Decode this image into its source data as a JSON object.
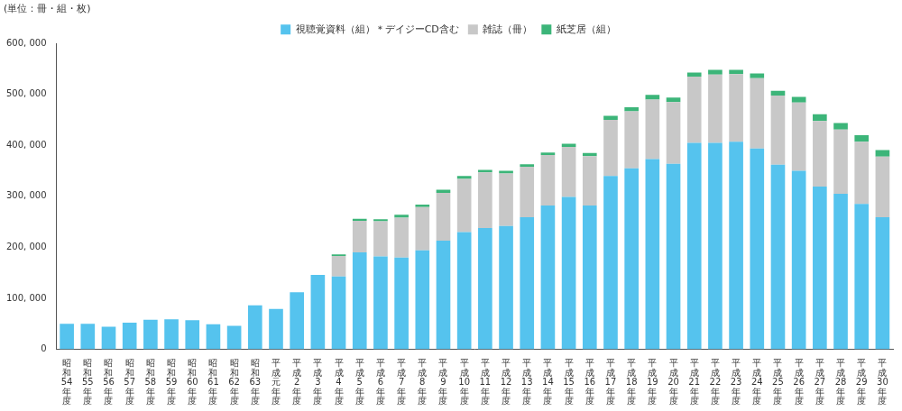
{
  "chart_data": {
    "type": "bar",
    "stacked": true,
    "grid": false,
    "legend": "top",
    "ylabel": "(単位：冊・組・枚)",
    "categories": [
      "昭和54年度",
      "昭和55年度",
      "昭和56年度",
      "昭和57年度",
      "昭和58年度",
      "昭和59年度",
      "昭和60年度",
      "昭和61年度",
      "昭和62年度",
      "昭和63年度",
      "平成元年度",
      "平成2年度",
      "平成3年度",
      "平成4年度",
      "平成5年度",
      "平成6年度",
      "平成7年度",
      "平成8年度",
      "平成9年度",
      "平成10年度",
      "平成11年度",
      "平成12年度",
      "平成13年度",
      "平成14年度",
      "平成15年度",
      "平成16年度",
      "平成17年度",
      "平成18年度",
      "平成19年度",
      "平成20年度",
      "平成21年度",
      "平成22年度",
      "平成23年度",
      "平成24年度",
      "平成25年度",
      "平成26年度",
      "平成27年度",
      "平成28年度",
      "平成29年度",
      "平成30年度"
    ],
    "series": [
      {
        "name": "視聴覚資料（組）＊デイジーCD含む",
        "color": "#55c3ee",
        "values": [
          50000,
          50000,
          44000,
          52000,
          58000,
          59000,
          57000,
          49000,
          46000,
          86000,
          79000,
          112000,
          146000,
          143000,
          190000,
          182000,
          180000,
          194000,
          213000,
          230000,
          238000,
          242000,
          259000,
          282000,
          299000,
          282000,
          340000,
          355000,
          373000,
          364000,
          405000,
          405000,
          407000,
          394000,
          362000,
          350000,
          319000,
          305000,
          285000,
          259000
        ]
      },
      {
        "name": "雑誌（冊）",
        "color": "#c8c8c8",
        "values": [
          null,
          null,
          null,
          null,
          null,
          null,
          null,
          null,
          null,
          null,
          null,
          null,
          null,
          40000,
          62000,
          69000,
          78000,
          85000,
          94000,
          104000,
          109000,
          103000,
          99000,
          99000,
          98000,
          97000,
          110000,
          112000,
          117000,
          121000,
          130000,
          134000,
          133000,
          138000,
          136000,
          134000,
          129000,
          126000,
          122000,
          119000
        ]
      },
      {
        "name": "紙芝居（組）",
        "color": "#3cb579",
        "values": [
          null,
          null,
          null,
          null,
          null,
          null,
          null,
          null,
          null,
          null,
          null,
          null,
          null,
          3000,
          4000,
          4000,
          6000,
          5000,
          6000,
          6000,
          5000,
          5000,
          5000,
          5000,
          6000,
          6000,
          8000,
          8000,
          9000,
          9000,
          8000,
          9000,
          8000,
          9000,
          9000,
          11000,
          13000,
          13000,
          13000,
          13000
        ]
      }
    ],
    "ylim": [
      0,
      600000
    ],
    "yticks": [
      0,
      {
        "value": 100000,
        "label": "100, 000"
      },
      {
        "value": 200000,
        "label": "200, 000"
      },
      {
        "value": 300000,
        "label": "300, 000"
      },
      {
        "value": 400000,
        "label": "400, 000"
      },
      {
        "value": 500000,
        "label": "500, 000"
      },
      {
        "value": 600000,
        "label": "600, 000"
      }
    ]
  }
}
